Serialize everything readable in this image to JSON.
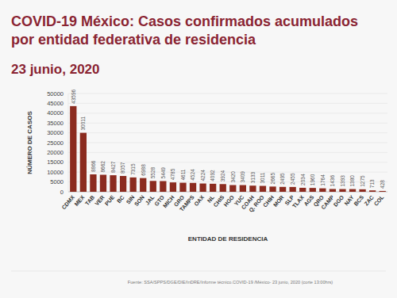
{
  "chart_data": {
    "type": "bar",
    "title": "COVID-19 México: Casos confirmados acumulados por entidad federativa de residencia",
    "subtitle": "23 junio, 2020",
    "x_label": "ENTIDAD DE RESIDENCIA",
    "y_label": "NÚMERO DE CASOS",
    "source": "Fuente: SSA/SPPS/DGE/DIE/InDRE/Informe técnico.COVID-19 /México- 23 junio, 2020 (corte 13:00hrs)",
    "categories": [
      "CDMX",
      "MEX",
      "TAB",
      "VER",
      "PUE",
      "BC",
      "SIN",
      "SON",
      "JAL",
      "GTO",
      "MICH",
      "GRO",
      "TAMPS",
      "OAX",
      "NL",
      "CHIS",
      "HGO",
      "YUC",
      "COAH",
      "Q. ROO",
      "CHIH",
      "MOR",
      "SLP",
      "TLAX",
      "AGS",
      "QRO",
      "CAMP",
      "DGO",
      "NAY",
      "BCS",
      "ZAC",
      "COL"
    ],
    "values": [
      43596,
      30011,
      8866,
      8662,
      8427,
      8057,
      7315,
      6988,
      5528,
      5449,
      4785,
      4611,
      4524,
      4224,
      4092,
      3924,
      3420,
      3409,
      3133,
      3011,
      2665,
      2495,
      2455,
      2034,
      1960,
      1764,
      1436,
      1393,
      1380,
      1275,
      713,
      428
    ],
    "color": "#8b2b1f",
    "ylim": [
      0,
      50000
    ],
    "yticks": [
      0,
      5000,
      10000,
      15000,
      20000,
      25000,
      30000,
      35000,
      40000,
      45000,
      50000
    ],
    "grid": true,
    "data_labels": true
  }
}
